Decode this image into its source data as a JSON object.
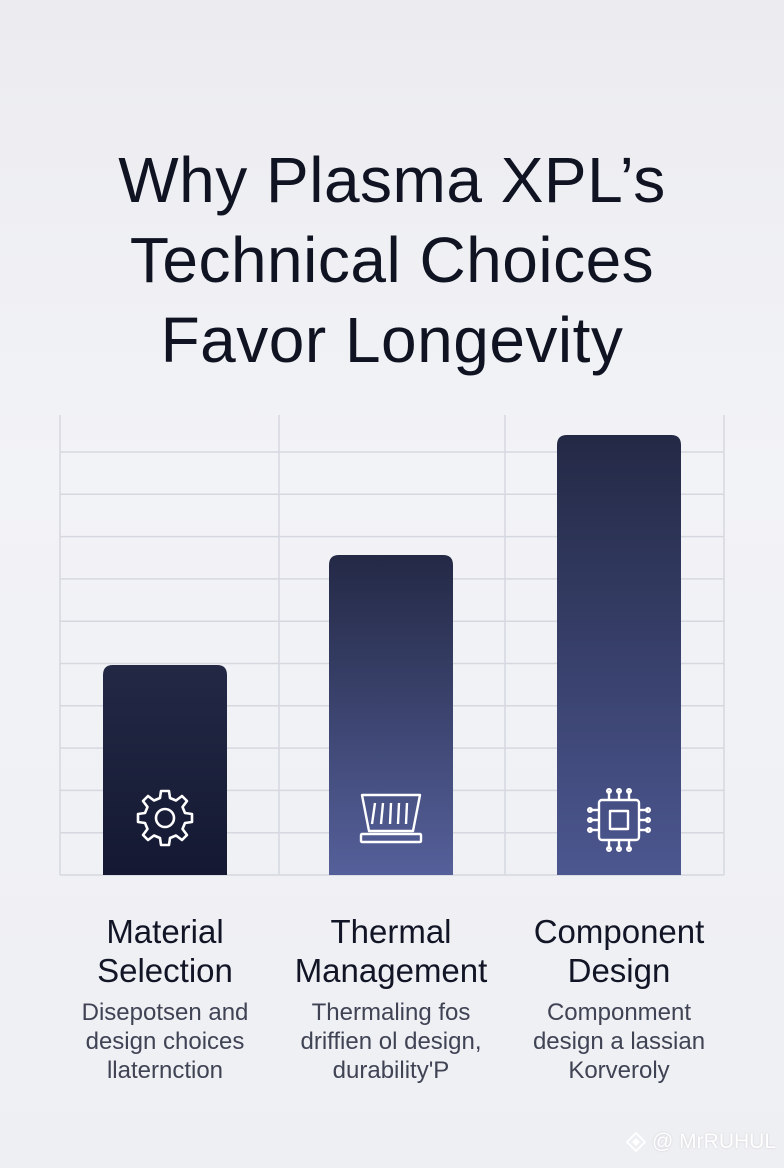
{
  "title_lines": [
    "Why Plasma XPL’s",
    "Technical Choices",
    "Favor Longevity"
  ],
  "colors": {
    "bar_top": "#232945",
    "bar_bottom_1": "#141832",
    "bar_bottom_2": "#55609a",
    "bar_bottom_3": "#4c5790",
    "grid": "#d6d8e0",
    "icon": "#ffffff"
  },
  "chart_data": {
    "type": "bar",
    "categories": [
      "Material Selection",
      "Thermal Management",
      "Component Design"
    ],
    "values": [
      42,
      64,
      88
    ],
    "ylim": [
      0,
      92
    ],
    "grid": true,
    "title": "Why Plasma XPL’s Technical Choices Favor Longevity",
    "xlabel": "",
    "ylabel": ""
  },
  "bars": [
    {
      "label_lines": [
        "Material",
        "Selection"
      ],
      "desc_lines": [
        "Disepotsen and",
        "design choices",
        "llaternction"
      ],
      "icon": "gear-icon"
    },
    {
      "label_lines": [
        "Thermal",
        "Management"
      ],
      "desc_lines": [
        "Thermaling fos",
        "driffien ol design,",
        "durability'P"
      ],
      "icon": "heatsink-icon"
    },
    {
      "label_lines": [
        "Component",
        "Design"
      ],
      "desc_lines": [
        "Componment",
        "design a lassian",
        "Korveroly"
      ],
      "icon": "chip-icon"
    }
  ],
  "watermark": {
    "text": "@ MrRUHUL",
    "icon": "diamond-logo-icon"
  }
}
